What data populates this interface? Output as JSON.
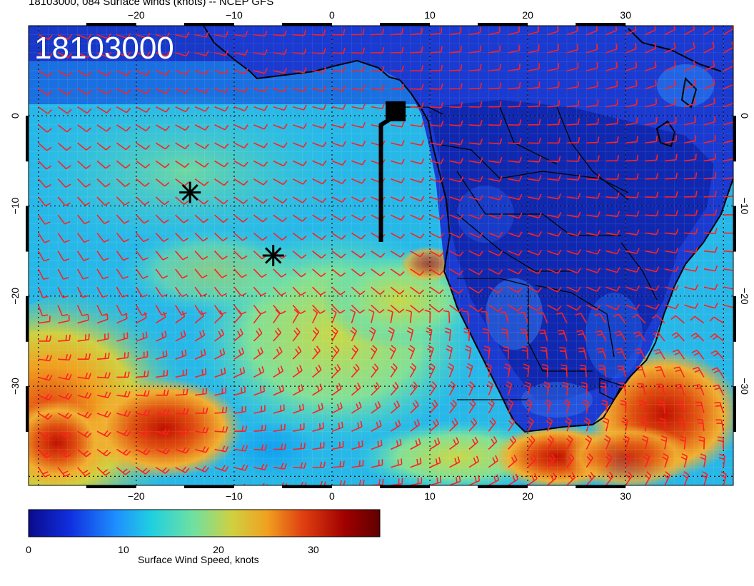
{
  "title": "18103000, 084 Surface winds (knots) -- NCEP GFS",
  "stamp": "18103000",
  "axes": {
    "lon_ticks": [
      "-20",
      "-10",
      "0",
      "10",
      "20",
      "30"
    ],
    "lat_ticks": [
      "0",
      "-10",
      "-20",
      "-30"
    ],
    "lon_range": [
      -31,
      41
    ],
    "lat_range": [
      -41,
      10
    ]
  },
  "colorbar": {
    "label": "Surface Wind Speed, knots",
    "ticks": [
      "0",
      "10",
      "20",
      "30"
    ],
    "range": [
      0,
      37
    ],
    "colors": [
      "#0a0a8c",
      "#1030e0",
      "#1e90ff",
      "#20d0e0",
      "#70e0a0",
      "#d0d040",
      "#f0a020",
      "#e04010",
      "#a00000",
      "#600000"
    ]
  },
  "markers": {
    "asterisks": [
      {
        "lon": -14.5,
        "lat": -8.5
      },
      {
        "lon": -6,
        "lat": -15.5
      }
    ],
    "square": {
      "lon": 6.5,
      "lat": 0.5
    },
    "track_line": [
      [
        6.5,
        0
      ],
      [
        5,
        -1
      ],
      [
        5,
        -14
      ]
    ]
  },
  "colors": {
    "barb": "#ff2020",
    "coast": "#000000",
    "grid": "#000000"
  }
}
